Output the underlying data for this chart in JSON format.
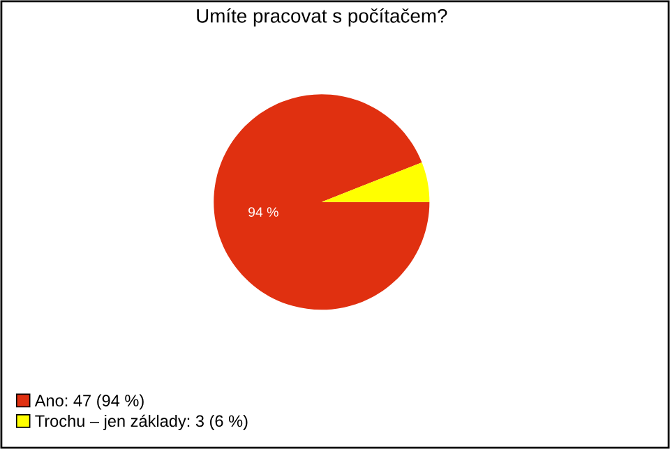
{
  "chart_data": {
    "type": "pie",
    "title": "Umíte pracovat s počítačem?",
    "categories": [
      "Ano: 47 (94 %)",
      "Trochu – jen základy: 3 (6 %)"
    ],
    "values": [
      94,
      6
    ],
    "colors": [
      "#e03010",
      "#ffff00"
    ],
    "value_labels": [
      "94 %",
      null
    ],
    "legend": "bottom left"
  }
}
